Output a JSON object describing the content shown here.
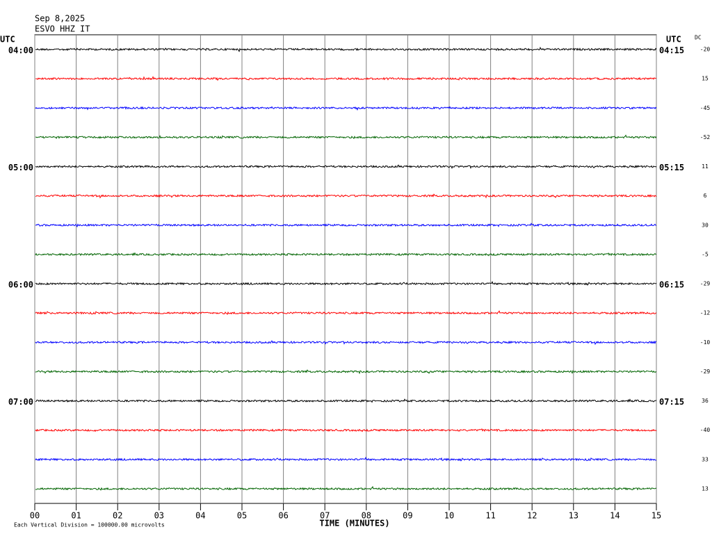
{
  "chart_data": {
    "type": "helicorder",
    "date": "Sep 8,2025",
    "station": "ESVO HHZ IT",
    "left_timezone": "UTC",
    "right_timezone": "UTC",
    "dc_header": "DC",
    "xlabel": "TIME (MINUTES)",
    "footer": "Each Vertical Division = 100000.00 microvolts",
    "xlim": [
      0,
      15
    ],
    "xticks": [
      {
        "value": 0,
        "label": "00"
      },
      {
        "value": 1,
        "label": "01"
      },
      {
        "value": 2,
        "label": "02"
      },
      {
        "value": 3,
        "label": "03"
      },
      {
        "value": 4,
        "label": "04"
      },
      {
        "value": 5,
        "label": "05"
      },
      {
        "value": 6,
        "label": "06"
      },
      {
        "value": 7,
        "label": "07"
      },
      {
        "value": 8,
        "label": "08"
      },
      {
        "value": 9,
        "label": "09"
      },
      {
        "value": 10,
        "label": "10"
      },
      {
        "value": 11,
        "label": "11"
      },
      {
        "value": 12,
        "label": "12"
      },
      {
        "value": 13,
        "label": "13"
      },
      {
        "value": 14,
        "label": "14"
      },
      {
        "value": 15,
        "label": "15"
      }
    ],
    "trace_colors": [
      "#000000",
      "#ff0000",
      "#0000ff",
      "#006400"
    ],
    "left_labels": [
      "04:00",
      null,
      null,
      null,
      "05:00",
      null,
      null,
      null,
      "06:00",
      null,
      null,
      null,
      "07:00",
      null,
      null,
      null
    ],
    "right_labels": [
      "04:15",
      null,
      null,
      null,
      "05:15",
      null,
      null,
      null,
      "06:15",
      null,
      null,
      null,
      "07:15",
      null,
      null,
      null
    ],
    "dc_offsets": [
      -20,
      15,
      -45,
      -52,
      11,
      6,
      30,
      -5,
      -29,
      -12,
      -10,
      -29,
      36,
      -40,
      33,
      13
    ],
    "grid": true
  }
}
